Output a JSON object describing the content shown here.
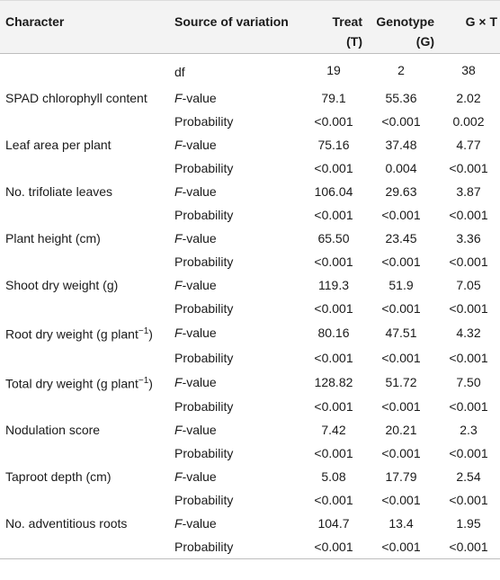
{
  "header": {
    "character": "Character",
    "source": "Source of variation",
    "treat": "Treat",
    "treat_abbr": "(T)",
    "genotype": "Genotype",
    "genotype_abbr": "(G)",
    "gxt": "G × T"
  },
  "df_row": {
    "source": "df",
    "treat": "19",
    "genotype": "2",
    "gxt": "38"
  },
  "rows": [
    {
      "character": "SPAD chlorophyll content",
      "f_label": "F",
      "f_suffix": "-value",
      "p_label": "Probability",
      "f": [
        "79.1",
        "55.36",
        "2.02"
      ],
      "p": [
        "<0.001",
        "<0.001",
        "0.002"
      ]
    },
    {
      "character": "Leaf area per plant",
      "f_label": "F",
      "f_suffix": "-value",
      "p_label": "Probability",
      "f": [
        "75.16",
        "37.48",
        "4.77"
      ],
      "p": [
        "<0.001",
        "0.004",
        "<0.001"
      ]
    },
    {
      "character": "No. trifoliate leaves",
      "f_label": "F",
      "f_suffix": "-value",
      "p_label": "Probability",
      "f": [
        "106.04",
        "29.63",
        "3.87"
      ],
      "p": [
        "<0.001",
        "<0.001",
        "<0.001"
      ]
    },
    {
      "character": "Plant height (cm)",
      "f_label": "F",
      "f_suffix": "-value",
      "p_label": "Probability",
      "f": [
        "65.50",
        "23.45",
        "3.36"
      ],
      "p": [
        "<0.001",
        "<0.001",
        "<0.001"
      ]
    },
    {
      "character": "Shoot dry weight (g)",
      "f_label": "F",
      "f_suffix": "-value",
      "p_label": "Probability",
      "f": [
        "119.3",
        "51.9",
        "7.05"
      ],
      "p": [
        "<0.001",
        "<0.001",
        "<0.001"
      ]
    },
    {
      "character": "Root dry weight (g plant",
      "character_sup": "−1",
      "character_end": ")",
      "f_label": "F",
      "f_suffix": "-value",
      "p_label": "Probability",
      "f": [
        "80.16",
        "47.51",
        "4.32"
      ],
      "p": [
        "<0.001",
        "<0.001",
        "<0.001"
      ]
    },
    {
      "character": "Total dry weight (g plant",
      "character_sup": "−1",
      "character_end": ")",
      "f_label": "F",
      "f_suffix": "-value",
      "p_label": "Probability",
      "f": [
        "128.82",
        "51.72",
        "7.50"
      ],
      "p": [
        "<0.001",
        "<0.001",
        "<0.001"
      ]
    },
    {
      "character": "Nodulation score",
      "f_label": "F",
      "f_suffix": "-value",
      "p_label": "Probability",
      "f": [
        "7.42",
        "20.21",
        "2.3"
      ],
      "p": [
        "<0.001",
        "<0.001",
        "<0.001"
      ]
    },
    {
      "character": "Taproot depth (cm)",
      "f_label": "F",
      "f_suffix": "-value",
      "p_label": "Probability",
      "f": [
        "5.08",
        "17.79",
        "2.54"
      ],
      "p": [
        "<0.001",
        "<0.001",
        "<0.001"
      ]
    },
    {
      "character": "No. adventitious roots",
      "f_label": "F",
      "f_suffix": "-value",
      "p_label": "Probability",
      "f": [
        "104.7",
        "13.4",
        "1.95"
      ],
      "p": [
        "<0.001",
        "<0.001",
        "<0.001"
      ]
    }
  ]
}
